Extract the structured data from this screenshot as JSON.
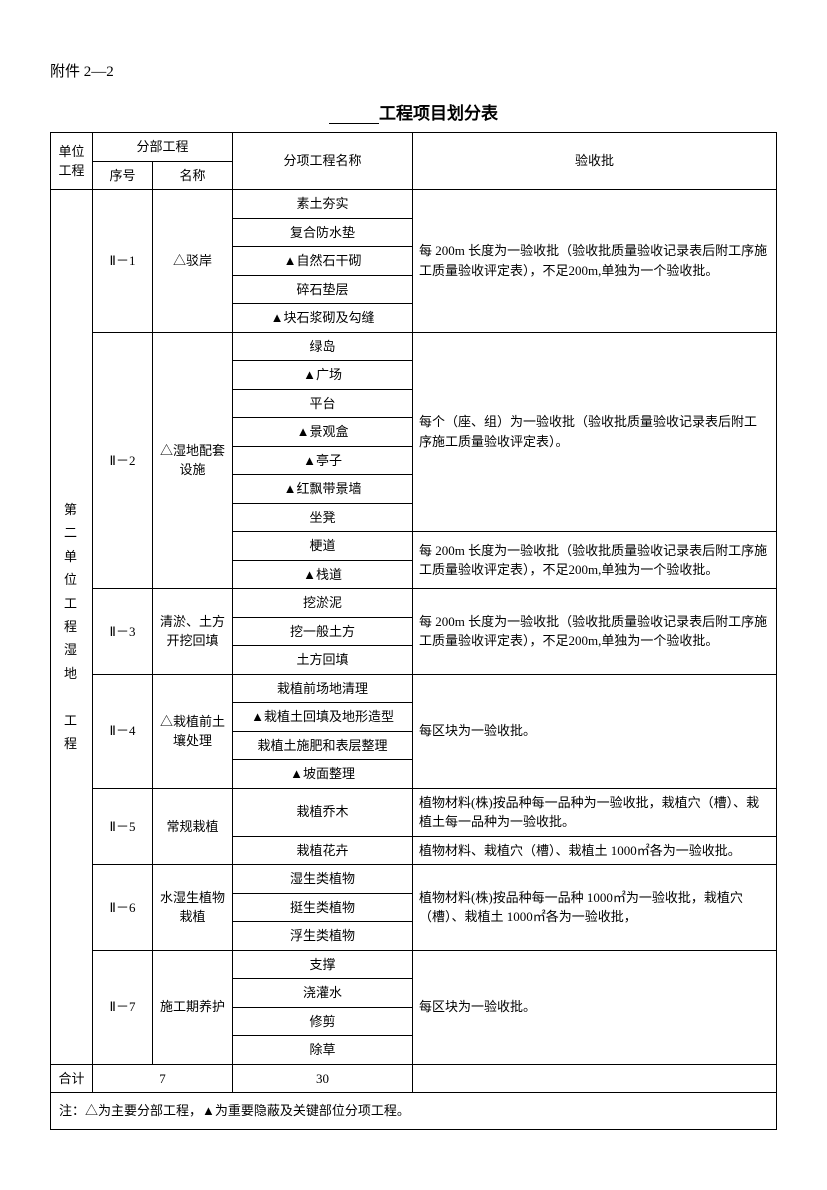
{
  "attachment_label": "附件 2—2",
  "title_suffix": "工程项目划分表",
  "headers": {
    "unit": "单位工程",
    "section": "分部工程",
    "seq": "序号",
    "name": "名称",
    "item": "分项工程名称",
    "accept": "验收批"
  },
  "unit_name_chars": [
    "第",
    "二",
    "单",
    "位",
    "工",
    "程",
    "湿",
    "地",
    "",
    "工",
    "程"
  ],
  "sections": [
    {
      "seq": "Ⅱ－1",
      "name": "△驳岸",
      "items": [
        "素土夯实",
        "复合防水垫",
        "▲自然石干砌",
        "碎石垫层",
        "▲块石浆砌及勾缝"
      ],
      "accept": "每 200m 长度为一验收批（验收批质量验收记录表后附工序施工质量验收评定表），不足200m,单独为一个验收批。",
      "accept_span": 5
    },
    {
      "seq": "Ⅱ－2",
      "name": "△湿地配套设施",
      "items": [
        "绿岛",
        "▲广场",
        "平台",
        "▲景观盒",
        "▲亭子",
        "▲红飘带景墙",
        "坐凳",
        "梗道",
        "▲栈道"
      ],
      "accepts": [
        {
          "text": "每个（座、组）为一验收批（验收批质量验收记录表后附工序施工质量验收评定表）。",
          "span": 7
        },
        {
          "text": "每 200m 长度为一验收批（验收批质量验收记录表后附工序施工质量验收评定表），不足200m,单独为一个验收批。",
          "span": 2
        }
      ]
    },
    {
      "seq": "Ⅱ－3",
      "name": "清淤、土方开挖回填",
      "items": [
        "挖淤泥",
        "挖一般土方",
        "土方回填"
      ],
      "accept": "每 200m 长度为一验收批（验收批质量验收记录表后附工序施工质量验收评定表），不足200m,单独为一个验收批。",
      "accept_span": 3
    },
    {
      "seq": "Ⅱ－4",
      "name": "△栽植前土壤处理",
      "items": [
        "栽植前场地清理",
        "▲栽植土回填及地形造型",
        "栽植土施肥和表层整理",
        "▲坡面整理"
      ],
      "accept": "每区块为一验收批。",
      "accept_span": 4
    },
    {
      "seq": "Ⅱ－5",
      "name": "常规栽植",
      "items": [
        "栽植乔木",
        "栽植花卉"
      ],
      "accepts": [
        {
          "text": "植物材料(株)按品种每一品种为一验收批，栽植穴（槽）、栽植土每一品种为一验收批。",
          "span": 1
        },
        {
          "text": "植物材料、栽植穴（槽）、栽植土 1000㎡各为一验收批。",
          "span": 1
        }
      ]
    },
    {
      "seq": "Ⅱ－6",
      "name": "水湿生植物栽植",
      "items": [
        "湿生类植物",
        "挺生类植物",
        "浮生类植物"
      ],
      "accept": "植物材料(株)按品种每一品种 1000㎡为一验收批，栽植穴（槽）、栽植土 1000㎡各为一验收批，",
      "accept_span": 3
    },
    {
      "seq": "Ⅱ－7",
      "name": "施工期养护",
      "items": [
        "支撑",
        "浇灌水",
        "修剪",
        "除草"
      ],
      "accept": "每区块为一验收批。",
      "accept_span": 4
    }
  ],
  "totals": {
    "label": "合计",
    "sections": "7",
    "items": "30"
  },
  "note": "注：△为主要分部工程，▲为重要隐蔽及关键部位分项工程。"
}
